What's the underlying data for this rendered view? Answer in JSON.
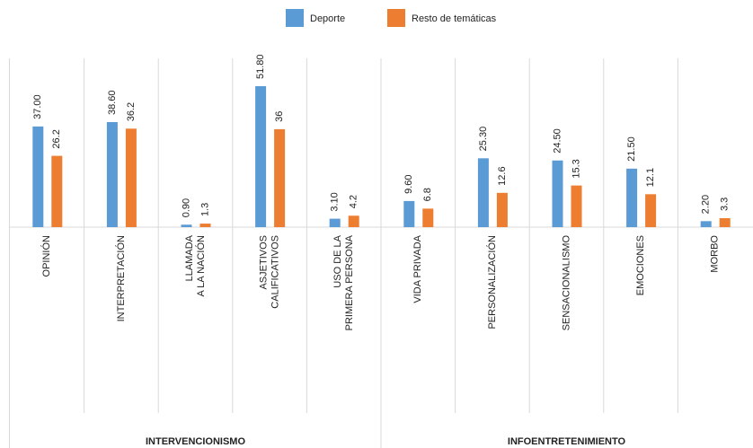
{
  "chart_data": {
    "type": "bar",
    "categories": [
      [
        "OPINIÓN"
      ],
      [
        "INTERPRETACIÓN"
      ],
      [
        "LLAMADA",
        "A LA NACIÓN"
      ],
      [
        "ASJETIVOS",
        "CALIFICATIVOS"
      ],
      [
        "USO DE LA",
        "PRIMERA PERSONA"
      ],
      [
        "VIDA PRIVADA"
      ],
      [
        "PERSONALIZACIÓN"
      ],
      [
        "SENSACIONALISMO"
      ],
      [
        "EMOCIONES"
      ],
      [
        "MORBO"
      ]
    ],
    "series": [
      {
        "name": "Deporte",
        "color": "#5b9bd5",
        "values": [
          37.0,
          38.6,
          0.9,
          51.8,
          3.1,
          9.6,
          25.3,
          24.5,
          21.5,
          2.2
        ],
        "value_labels": [
          "37.00",
          "38.60",
          "0.90",
          "51.80",
          "3.10",
          "9.60",
          "25.30",
          "24.50",
          "21.50",
          "2.20"
        ]
      },
      {
        "name": "Resto de temáticas",
        "color": "#ed7d31",
        "values": [
          26.2,
          36.2,
          1.3,
          36,
          4.2,
          6.8,
          12.6,
          15.3,
          12.1,
          3.3
        ]
      }
    ],
    "groups": [
      {
        "name": "INTERVENCIONISMO",
        "size": 5
      },
      {
        "name": "INFOENTRETENIMIENTO",
        "size": 5
      }
    ],
    "legend": "top"
  }
}
